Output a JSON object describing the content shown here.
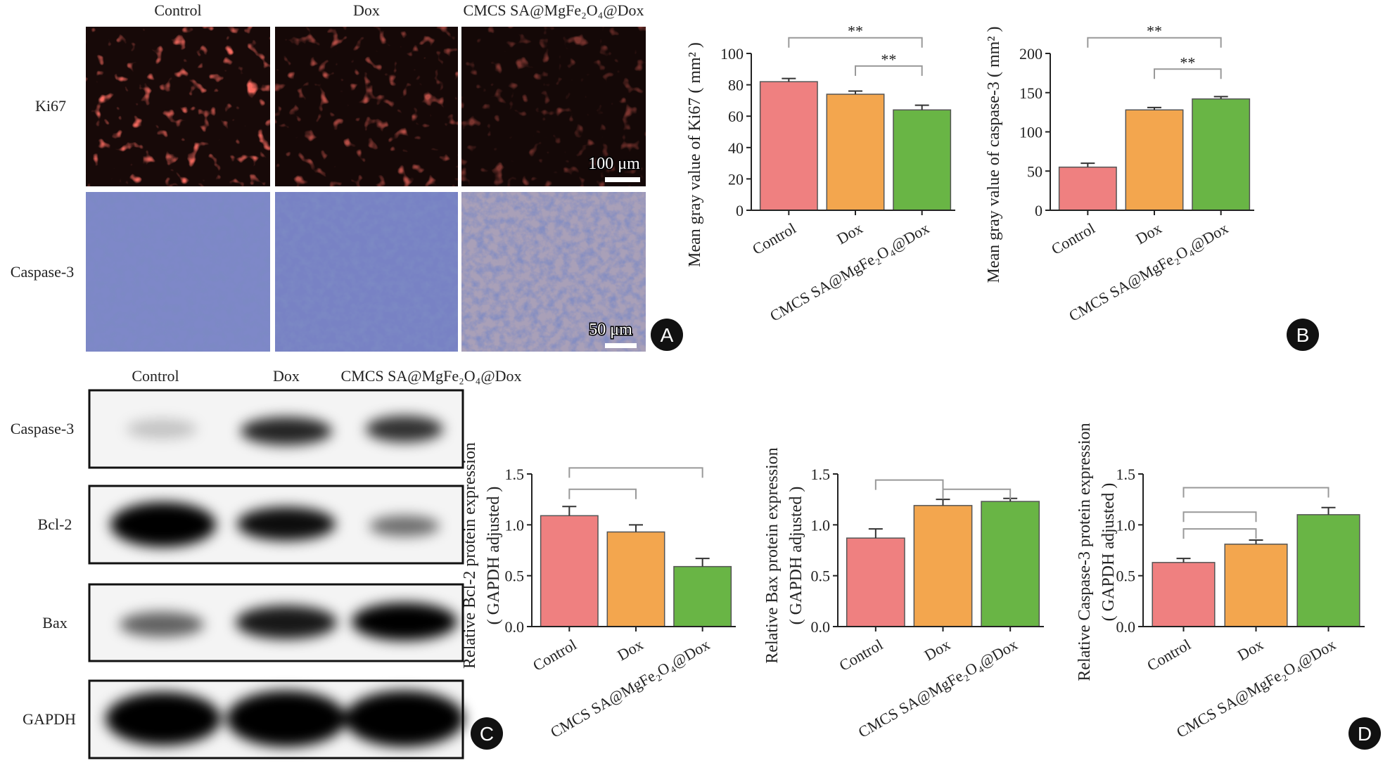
{
  "figure": {
    "panel_labels": [
      "A",
      "B",
      "C",
      "D"
    ],
    "microscopy": {
      "columns": [
        "Control",
        "Dox",
        "CMCS SA@MgFe₂O₄@Dox"
      ],
      "rows": [
        "Ki67",
        "Caspase-3"
      ],
      "scale_bars": [
        "100 μm",
        "50 μm"
      ]
    },
    "blot": {
      "columns": [
        "Control",
        "Dox",
        "CMCS SA@MgFe₂O₄@Dox"
      ],
      "rows": [
        "Caspase-3",
        "Bcl-2",
        "Bax",
        "GAPDH"
      ]
    }
  },
  "chart_data": [
    {
      "type": "bar",
      "ylabel": [
        "Mean gray value of Ki67 ( mm² )"
      ],
      "categories": [
        "Control",
        "Dox",
        "CMCS SA@MgFe₂O₄@Dox"
      ],
      "values": [
        82,
        74,
        64
      ],
      "errors": [
        2,
        2,
        3
      ],
      "colors": [
        "#ef8080",
        "#f3a64e",
        "#69b545"
      ],
      "ylim": [
        0,
        100
      ],
      "yticks": [
        0,
        20,
        40,
        60,
        80,
        100
      ],
      "annotations": [
        "**",
        "**"
      ]
    },
    {
      "type": "bar",
      "ylabel": [
        "Mean gray value of caspase-3 ( mm² )"
      ],
      "categories": [
        "Control",
        "Dox",
        "CMCS SA@MgFe₂O₄@Dox"
      ],
      "values": [
        55,
        128,
        142
      ],
      "errors": [
        5,
        3,
        3
      ],
      "colors": [
        "#ef8080",
        "#f3a64e",
        "#69b545"
      ],
      "ylim": [
        0,
        200
      ],
      "yticks": [
        0,
        50,
        100,
        150,
        200
      ],
      "annotations": [
        "**",
        "**"
      ]
    },
    {
      "type": "bar",
      "ylabel": [
        "Relative Bcl-2 protein expression",
        "( GAPDH adjusted )"
      ],
      "categories": [
        "Control",
        "Dox",
        "CMCS SA@MgFe₂O₄@Dox"
      ],
      "values": [
        1.09,
        0.93,
        0.59
      ],
      "errors": [
        0.09,
        0.07,
        0.08
      ],
      "colors": [
        "#ef8080",
        "#f3a64e",
        "#69b545"
      ],
      "ylim": [
        0,
        1.5
      ],
      "yticks": [
        {
          "value": 0,
          "label": "0.0"
        },
        0.5,
        {
          "value": 1,
          "label": "1.0"
        },
        1.5
      ]
    },
    {
      "type": "bar",
      "ylabel": [
        "Relative Bax protein expression",
        "( GAPDH adjusted )"
      ],
      "categories": [
        "Control",
        "Dox",
        "CMCS SA@MgFe₂O₄@Dox"
      ],
      "values": [
        0.87,
        1.19,
        1.23
      ],
      "errors": [
        0.09,
        0.06,
        0.03
      ],
      "colors": [
        "#ef8080",
        "#f3a64e",
        "#69b545"
      ],
      "ylim": [
        0,
        1.5
      ],
      "yticks": [
        {
          "value": 0,
          "label": "0.0"
        },
        0.5,
        {
          "value": 1,
          "label": "1.0"
        },
        1.5
      ]
    },
    {
      "type": "bar",
      "ylabel": [
        "Relative Caspase-3 protein expression",
        "( GAPDH adjusted )"
      ],
      "categories": [
        "Control",
        "Dox",
        "CMCS SA@MgFe₂O₄@Dox"
      ],
      "values": [
        0.63,
        0.81,
        1.1
      ],
      "errors": [
        0.04,
        0.04,
        0.07
      ],
      "colors": [
        "#ef8080",
        "#f3a64e",
        "#69b545"
      ],
      "ylim": [
        0,
        1.5
      ],
      "yticks": [
        {
          "value": 0,
          "label": "0.0"
        },
        0.5,
        {
          "value": 1,
          "label": "1.0"
        },
        1.5
      ]
    }
  ]
}
